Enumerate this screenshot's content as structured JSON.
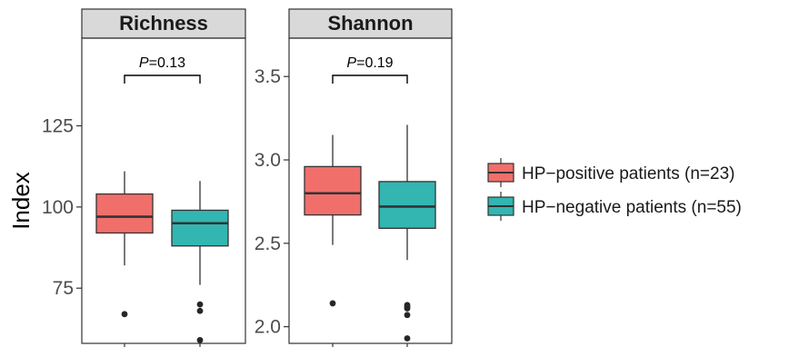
{
  "chart_data": {
    "type": "box",
    "ylabel": "Index",
    "legend_position": "right",
    "groups": [
      {
        "name": "HP−positive patients (n=23)",
        "color": "#f06f6b"
      },
      {
        "name": "HP−negative patients (n=55)",
        "color": "#33b5b1"
      }
    ],
    "panels": [
      {
        "title": "Richness",
        "ylim": [
          58,
          152
        ],
        "yticks": [
          75,
          100,
          125
        ],
        "annotation": {
          "prefix": "P",
          "suffix": "=0.13"
        },
        "boxes": [
          {
            "group": 0,
            "whisker_low": 82,
            "q1": 92,
            "median": 97,
            "q3": 104,
            "whisker_high": 111,
            "outliers": [
              67
            ]
          },
          {
            "group": 1,
            "whisker_low": 76,
            "q1": 88,
            "median": 95,
            "q3": 99,
            "whisker_high": 108,
            "outliers": [
              59,
              68,
              70
            ]
          }
        ]
      },
      {
        "title": "Shannon",
        "ylim": [
          1.9,
          3.73
        ],
        "yticks": [
          2.0,
          2.5,
          3.0,
          3.5
        ],
        "annotation": {
          "prefix": "P",
          "suffix": "=0.19"
        },
        "boxes": [
          {
            "group": 0,
            "whisker_low": 2.49,
            "q1": 2.67,
            "median": 2.8,
            "q3": 2.96,
            "whisker_high": 3.15,
            "outliers": [
              2.14
            ]
          },
          {
            "group": 1,
            "whisker_low": 2.4,
            "q1": 2.59,
            "median": 2.72,
            "q3": 2.87,
            "whisker_high": 3.21,
            "outliers": [
              1.93,
              2.07,
              2.11,
              2.12,
              2.13
            ]
          }
        ]
      }
    ]
  }
}
